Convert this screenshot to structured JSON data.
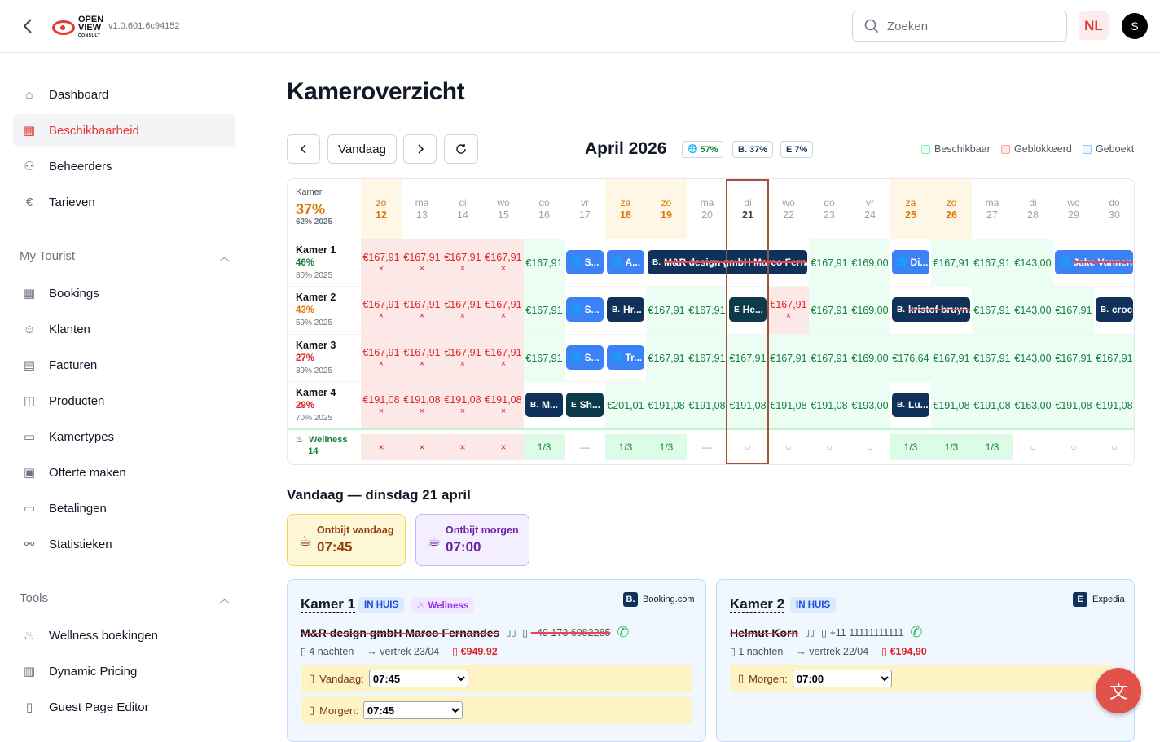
{
  "header": {
    "version": "v1.0.601.6c94152",
    "logo_line1": "OPEN",
    "logo_line2": "VIEW",
    "logo_line3": "CONSULT",
    "search_placeholder": "Zoeken",
    "lang": "NL",
    "avatar": "S"
  },
  "sidebar": {
    "items": [
      {
        "label": "Dashboard",
        "icon": "home-icon"
      },
      {
        "label": "Beschikbaarheid",
        "icon": "calendar-check-icon",
        "active": true
      },
      {
        "label": "Beheerders",
        "icon": "users-icon"
      },
      {
        "label": "Tarieven",
        "icon": "euro-icon"
      }
    ],
    "section1": "My Tourist",
    "section1_items": [
      {
        "label": "Bookings",
        "icon": "calendar-icon"
      },
      {
        "label": "Klanten",
        "icon": "user-icon"
      },
      {
        "label": "Facturen",
        "icon": "document-icon"
      },
      {
        "label": "Producten",
        "icon": "box-icon"
      },
      {
        "label": "Kamertypes",
        "icon": "bed-icon"
      },
      {
        "label": "Offerte maken",
        "icon": "file-plus-icon"
      },
      {
        "label": "Betalingen",
        "icon": "credit-card-icon"
      },
      {
        "label": "Statistieken",
        "icon": "share-icon"
      }
    ],
    "section2": "Tools",
    "section2_items": [
      {
        "label": "Wellness boekingen",
        "icon": "spa-icon"
      },
      {
        "label": "Dynamic Pricing",
        "icon": "chart-icon"
      },
      {
        "label": "Guest Page Editor",
        "icon": "phone-icon"
      }
    ]
  },
  "page": {
    "title": "Kameroverzicht",
    "today_btn": "Vandaag",
    "month": "April 2026",
    "pills": [
      {
        "ic": "🌐",
        "val": "57%"
      },
      {
        "ic": "B.",
        "val": "37%"
      },
      {
        "ic": "E",
        "val": "7%"
      }
    ],
    "legend": [
      {
        "label": "Beschikbaar",
        "color": "#86efac"
      },
      {
        "label": "Geblokkeerd",
        "color": "#fca5a5"
      },
      {
        "label": "Geboekt",
        "color": "#93c5fd"
      }
    ]
  },
  "grid": {
    "corner_label": "Kamer",
    "corner_pct": "37%",
    "corner_prev": "62% 2025",
    "days": [
      [
        "zo",
        "12"
      ],
      [
        "ma",
        "13"
      ],
      [
        "di",
        "14"
      ],
      [
        "wo",
        "15"
      ],
      [
        "do",
        "16"
      ],
      [
        "vr",
        "17"
      ],
      [
        "za",
        "18"
      ],
      [
        "zo",
        "19"
      ],
      [
        "ma",
        "20"
      ],
      [
        "di",
        "21"
      ],
      [
        "wo",
        "22"
      ],
      [
        "do",
        "23"
      ],
      [
        "vr",
        "24"
      ],
      [
        "za",
        "25"
      ],
      [
        "zo",
        "26"
      ],
      [
        "ma",
        "27"
      ],
      [
        "di",
        "28"
      ],
      [
        "wo",
        "29"
      ],
      [
        "do",
        "30"
      ]
    ],
    "rooms": [
      {
        "name": "Kamer 1",
        "pct": "46%",
        "prev": "80% 2025",
        "pcolor": "#15803d"
      },
      {
        "name": "Kamer 2",
        "pct": "43%",
        "prev": "59% 2025",
        "pcolor": "#d97706"
      },
      {
        "name": "Kamer 3",
        "pct": "27%",
        "prev": "39% 2025",
        "pcolor": "#dc2626"
      },
      {
        "name": "Kamer 4",
        "pct": "29%",
        "prev": "70% 2025",
        "pcolor": "#dc2626"
      }
    ],
    "wellness_label": "Wellness",
    "wellness_count": "14",
    "r1": {
      "blocked": "€167,91",
      "c16": "€167,91",
      "b1": "S...",
      "b2": "A...",
      "b3": "M&R design gmbH Marco Fernan...",
      "c22": "€167,91",
      "c24": "€169,00",
      "b4": "Di...",
      "c26": "€167,91",
      "c27": "€167,91",
      "c28": "€143,00",
      "b5": "Jake Vannen..."
    },
    "r2": {
      "blocked": "€167,91",
      "c16": "€167,91",
      "b1": "S...",
      "b2": "Hr...",
      "c19": "€167,91",
      "c20": "€167,91",
      "b3": "He...",
      "c22": "€167,91",
      "c23": "€167,91",
      "c24": "€169,00",
      "b4": "kristof bruyn...",
      "c27": "€167,91",
      "c28": "€143,00",
      "c29": "€167,91",
      "b5": "croch"
    },
    "r3": {
      "blocked": "€167,91",
      "c16": "€167,91",
      "b1": "S...",
      "b2": "Tr...",
      "c19": "€167,91",
      "c20": "€167,91",
      "c21": "€167,91",
      "c22": "€167,91",
      "c23": "€167,91",
      "c24": "€169,00",
      "c25": "€176,64",
      "c26": "€167,91",
      "c27": "€167,91",
      "c28": "€143,00",
      "c29": "€167,91",
      "c30": "€167,91"
    },
    "r4": {
      "blocked": "€191,08",
      "b1": "M...",
      "b2": "Sh...",
      "c18": "€201,01",
      "c19": "€191,08",
      "c20": "€191,08",
      "c21": "€191,08",
      "c22": "€191,08",
      "c23": "€191,08",
      "c24": "€193,00",
      "b3": "Lu...",
      "c26": "€191,08",
      "c27": "€191,08",
      "c28": "€163,00",
      "c29": "€191,08",
      "c30": "€191,08"
    },
    "w": {
      "x": "×",
      "frac": "1/3",
      "dash": "—",
      "o": "○"
    }
  },
  "today": {
    "title": "Vandaag — dinsdag 21 april",
    "b1_label": "Ontbijt vandaag",
    "b1_time": "07:45",
    "b2_label": "Ontbijt morgen",
    "b2_time": "07:00"
  },
  "rooms": [
    {
      "name": "Kamer 1",
      "status": "IN HUIS",
      "extra": "♨ Wellness",
      "source": "Booking.com",
      "source_ic": "B.",
      "guest": "M&R design gmbH Marco Fernandes",
      "phone": "+49 173 6982285",
      "nights": "4 nachten",
      "depart": "→ vertrek 23/04",
      "price": "€949,92",
      "meal1_label": "Vandaag:",
      "meal1": "07:45",
      "meal2_label": "Morgen:",
      "meal2": "07:45"
    },
    {
      "name": "Kamer 2",
      "status": "IN HUIS",
      "source": "Expedia",
      "source_ic": "E",
      "guest": "Helmut Korn",
      "phone": "+11 11111111111",
      "nights": "1 nachten",
      "depart": "→ vertrek 22/04",
      "price": "€194,90",
      "meal1_label": "Morgen:",
      "meal1": "07:00"
    }
  ],
  "fab_icon": "translate-icon"
}
